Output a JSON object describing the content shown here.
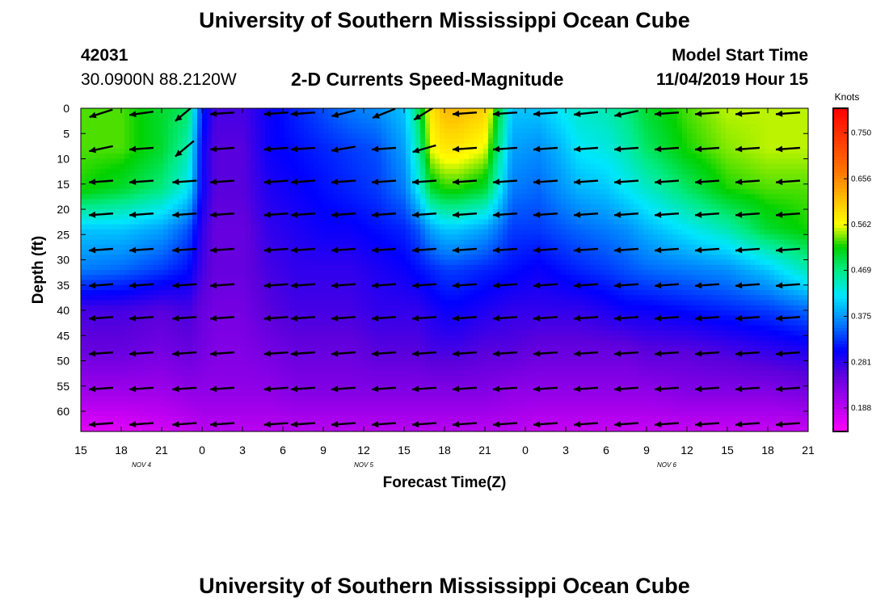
{
  "header": {
    "title_top": "University of Southern Mississippi Ocean Cube",
    "title_bottom": "University of Southern Mississippi Ocean Cube",
    "station_id": "42031",
    "station_coords": "30.0900N 88.2120W",
    "plot_title": "2-D Currents Speed-Magnitude",
    "model_start_label": "Model Start Time",
    "model_start_value": "11/04/2019 Hour 15"
  },
  "chart_data": {
    "type": "heatmap",
    "title": "2-D Currents Speed-Magnitude",
    "xlabel": "Forecast Time(Z)",
    "ylabel": "Depth (ft)",
    "x_range_hours": [
      0,
      54
    ],
    "y_range_ft": [
      0,
      64
    ],
    "x_tick_labels": [
      "15",
      "18",
      "21",
      "0",
      "3",
      "6",
      "9",
      "12",
      "15",
      "18",
      "21",
      "0",
      "3",
      "6",
      "9",
      "12",
      "15",
      "18",
      "21"
    ],
    "y_tick_labels": [
      "0",
      "5",
      "10",
      "15",
      "20",
      "25",
      "30",
      "35",
      "40",
      "45",
      "50",
      "55",
      "60"
    ],
    "date_labels": [
      {
        "text": "NOV  4",
        "hour": 4.5
      },
      {
        "text": "NOV  5",
        "hour": 21
      },
      {
        "text": "NOV  6",
        "hour": 43.5
      }
    ],
    "colorbar": {
      "unit": "Knots",
      "range": [
        0.14,
        0.8
      ],
      "tick_values": [
        0.188,
        0.281,
        0.375,
        0.469,
        0.562,
        0.656,
        0.75
      ],
      "tick_labels": [
        "0.188",
        "0.281",
        "0.375",
        "0.469",
        "0.562",
        "0.656",
        "0.750"
      ]
    },
    "speed_knots": {
      "depth_levels_ft": [
        0,
        8,
        16,
        24,
        32,
        40,
        48,
        56,
        64
      ],
      "time_points_hours": [
        0,
        3,
        6,
        8,
        9,
        10,
        12,
        14,
        16,
        18,
        20,
        22,
        24,
        25,
        26,
        27,
        28,
        30,
        32,
        34,
        35.5,
        37,
        39,
        40.5,
        42,
        45,
        48,
        51,
        54
      ],
      "values": [
        [
          0.53,
          0.53,
          0.5,
          0.48,
          0.32,
          0.27,
          0.27,
          0.3,
          0.32,
          0.34,
          0.36,
          0.37,
          0.4,
          0.48,
          0.58,
          0.62,
          0.62,
          0.6,
          0.4,
          0.4,
          0.42,
          0.44,
          0.45,
          0.47,
          0.5,
          0.53,
          0.55,
          0.55,
          0.55
        ],
        [
          0.53,
          0.53,
          0.5,
          0.45,
          0.3,
          0.26,
          0.26,
          0.3,
          0.31,
          0.32,
          0.33,
          0.34,
          0.38,
          0.45,
          0.56,
          0.58,
          0.58,
          0.56,
          0.38,
          0.37,
          0.39,
          0.42,
          0.43,
          0.45,
          0.48,
          0.52,
          0.54,
          0.55,
          0.55
        ],
        [
          0.52,
          0.5,
          0.47,
          0.42,
          0.3,
          0.26,
          0.26,
          0.29,
          0.3,
          0.31,
          0.32,
          0.33,
          0.36,
          0.42,
          0.5,
          0.52,
          0.52,
          0.5,
          0.36,
          0.35,
          0.37,
          0.39,
          0.4,
          0.42,
          0.44,
          0.48,
          0.52,
          0.53,
          0.53
        ],
        [
          0.4,
          0.4,
          0.38,
          0.34,
          0.28,
          0.25,
          0.25,
          0.28,
          0.29,
          0.3,
          0.3,
          0.31,
          0.32,
          0.34,
          0.38,
          0.4,
          0.4,
          0.38,
          0.33,
          0.33,
          0.34,
          0.35,
          0.36,
          0.37,
          0.39,
          0.42,
          0.45,
          0.5,
          0.52
        ],
        [
          0.36,
          0.35,
          0.33,
          0.31,
          0.27,
          0.25,
          0.25,
          0.27,
          0.28,
          0.28,
          0.28,
          0.29,
          0.3,
          0.31,
          0.32,
          0.33,
          0.33,
          0.32,
          0.31,
          0.3,
          0.31,
          0.32,
          0.33,
          0.34,
          0.35,
          0.36,
          0.37,
          0.4,
          0.45
        ],
        [
          0.27,
          0.27,
          0.26,
          0.27,
          0.25,
          0.24,
          0.24,
          0.26,
          0.27,
          0.27,
          0.27,
          0.28,
          0.28,
          0.28,
          0.29,
          0.3,
          0.3,
          0.29,
          0.28,
          0.28,
          0.28,
          0.28,
          0.29,
          0.3,
          0.3,
          0.31,
          0.32,
          0.33,
          0.35
        ],
        [
          0.25,
          0.25,
          0.24,
          0.25,
          0.24,
          0.23,
          0.23,
          0.24,
          0.25,
          0.25,
          0.25,
          0.26,
          0.26,
          0.26,
          0.27,
          0.27,
          0.27,
          0.26,
          0.26,
          0.25,
          0.25,
          0.25,
          0.25,
          0.25,
          0.26,
          0.26,
          0.27,
          0.28,
          0.29
        ],
        [
          0.21,
          0.21,
          0.21,
          0.22,
          0.22,
          0.22,
          0.22,
          0.22,
          0.23,
          0.23,
          0.23,
          0.23,
          0.23,
          0.23,
          0.23,
          0.23,
          0.23,
          0.23,
          0.22,
          0.22,
          0.22,
          0.22,
          0.22,
          0.22,
          0.22,
          0.23,
          0.23,
          0.23,
          0.24
        ],
        [
          0.16,
          0.16,
          0.17,
          0.18,
          0.19,
          0.19,
          0.19,
          0.19,
          0.19,
          0.19,
          0.19,
          0.19,
          0.19,
          0.19,
          0.19,
          0.19,
          0.19,
          0.19,
          0.19,
          0.18,
          0.18,
          0.18,
          0.18,
          0.18,
          0.18,
          0.18,
          0.18,
          0.18,
          0.18
        ]
      ]
    },
    "vectors": {
      "time_hours": [
        1.5,
        4.5,
        7.7,
        10.5,
        14.5,
        16.5,
        19.5,
        22.5,
        25.5,
        28.5,
        31.5,
        34.5,
        37.5,
        40.5,
        43.5,
        46.5,
        49.5,
        52.5
      ],
      "depth_ft": [
        1,
        8,
        14.5,
        21,
        28,
        35,
        41.5,
        48.5,
        55.5,
        62.5
      ],
      "direction_deg_ccw_from_west_default": 4,
      "direction_overrides": [
        {
          "time": 1.5,
          "depth": 1,
          "deg": 18
        },
        {
          "time": 4.5,
          "depth": 1,
          "deg": 8
        },
        {
          "time": 7.7,
          "depth": 1,
          "deg": 40
        },
        {
          "time": 7.7,
          "depth": 8,
          "deg": 40
        },
        {
          "time": 19.5,
          "depth": 1,
          "deg": 14
        },
        {
          "time": 22.5,
          "depth": 1,
          "deg": 22
        },
        {
          "time": 25.5,
          "depth": 1,
          "deg": 32
        },
        {
          "time": 25.5,
          "depth": 8,
          "deg": 16
        },
        {
          "time": 37.5,
          "depth": 1,
          "deg": 6
        },
        {
          "time": 40.5,
          "depth": 1,
          "deg": 12
        },
        {
          "time": 19.5,
          "depth": 8,
          "deg": 10
        },
        {
          "time": 1.5,
          "depth": 8,
          "deg": 12
        }
      ]
    }
  }
}
